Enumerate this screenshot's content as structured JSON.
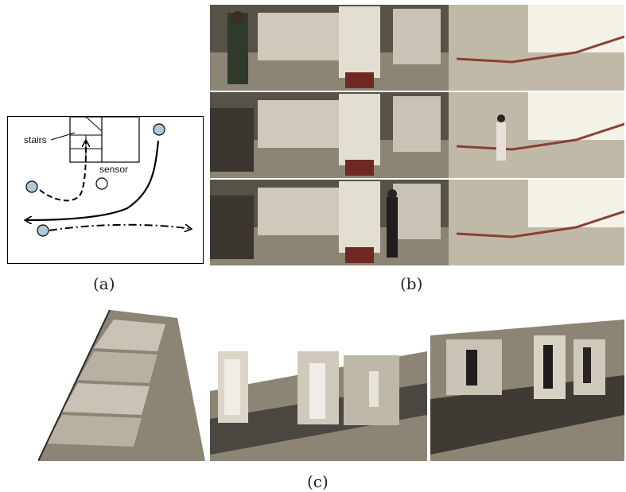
{
  "figure": {
    "panel_a": {
      "caption": "(a)",
      "labels": {
        "stairs": "stairs",
        "sensor": "sensor"
      }
    },
    "panel_b": {
      "caption": "(b)"
    },
    "panel_c": {
      "caption": "(c)"
    }
  },
  "colors": {
    "dot_fill": "#b3c7d6",
    "wall": "#d8d3c8",
    "floor": "#9c9484",
    "dark": "#2b2a26",
    "stair_red": "#8a3f36",
    "bright": "#f4f1e6"
  }
}
